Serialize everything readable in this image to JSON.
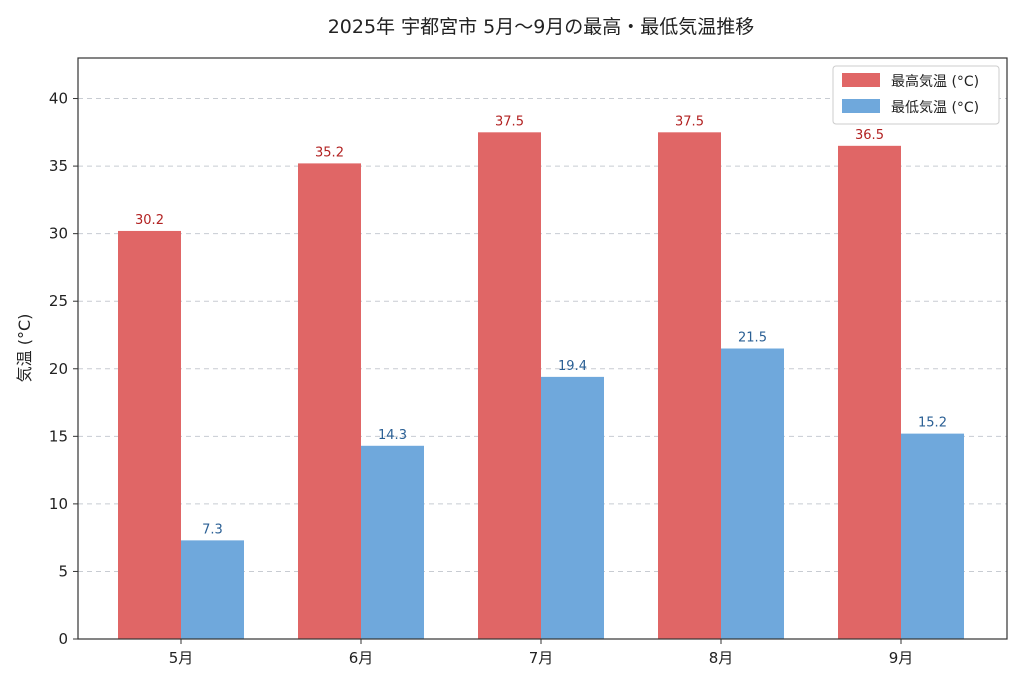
{
  "chart_data": {
    "type": "bar",
    "title": "2025年 宇都宮市 5月〜9月の最高・最低気温推移",
    "xlabel": "",
    "ylabel": "気温 (°C)",
    "categories": [
      "5月",
      "6月",
      "7月",
      "8月",
      "9月"
    ],
    "series": [
      {
        "name": "最高気温 (°C)",
        "values": [
          30.2,
          35.2,
          37.5,
          37.5,
          36.5
        ],
        "color": "#e06666",
        "label_color": "#b22222"
      },
      {
        "name": "最低気温 (°C)",
        "values": [
          7.3,
          14.3,
          19.4,
          21.5,
          15.2
        ],
        "color": "#6fa8dc",
        "label_color": "#2a5f94"
      }
    ],
    "ylim": [
      0,
      43
    ],
    "yticks": [
      0,
      5,
      10,
      15,
      20,
      25,
      30,
      35,
      40
    ],
    "grid": "y-dashed",
    "legend_position": "top-right"
  }
}
